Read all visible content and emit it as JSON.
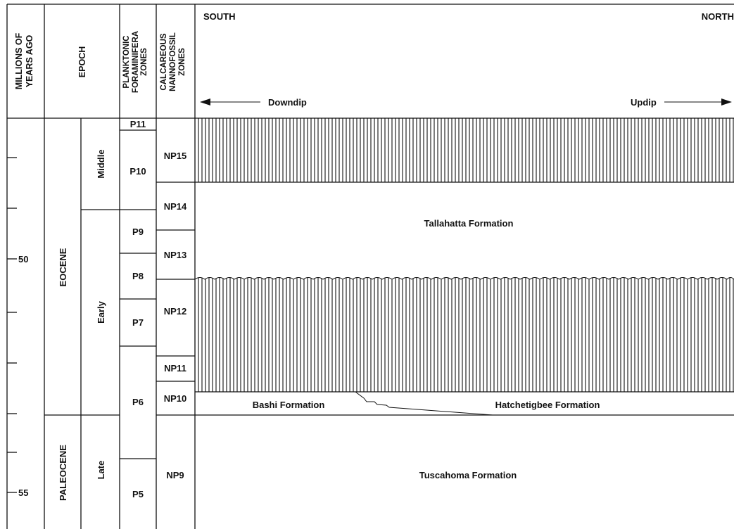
{
  "header": {
    "age_line1": "MILLIONS OF",
    "age_line2": "YEARS AGO",
    "epoch": "EPOCH",
    "plank_line1": "PLANKTONIC",
    "plank_line2": "FORAMINIFERA",
    "plank_line3": "ZONES",
    "nanno_line1": "CALCAREOUS",
    "nanno_line2": "NANNOFOSSIL",
    "nanno_line3": "ZONES",
    "south": "SOUTH",
    "north": "NORTH",
    "downdip": "Downdip",
    "updip": "Updip"
  },
  "age_ticks": [
    "50",
    "55"
  ],
  "epochs": {
    "eocene": "EOCENE",
    "paleocene": "PALEOCENE",
    "middle": "Middle",
    "early": "Early",
    "late": "Late"
  },
  "planktonic_zones": [
    "P11",
    "P10",
    "P9",
    "P8",
    "P7",
    "P6",
    "P5"
  ],
  "nannofossil_zones": [
    "NP15",
    "NP14",
    "NP13",
    "NP12",
    "NP11",
    "NP10",
    "NP9"
  ],
  "formations": {
    "tallahatta": "Tallahatta Formation",
    "bashi": "Bashi Formation",
    "hatchetigbee": "Hatchetigbee Formation",
    "tuscahoma": "Tuscahoma Formation"
  },
  "hatch_style": "vertical-line-unconformity"
}
